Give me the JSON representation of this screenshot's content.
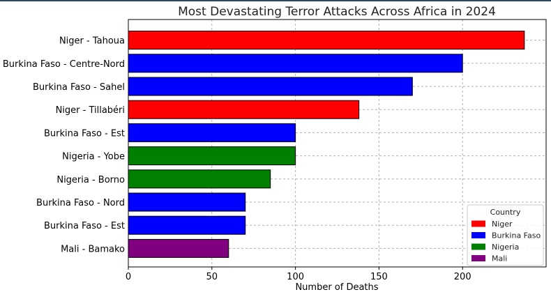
{
  "chart_data": {
    "type": "bar",
    "orientation": "horizontal",
    "title": "Most Devastating Terror Attacks Across Africa in 2024",
    "xlabel": "Number of Deaths",
    "ylabel": "",
    "xlim": [
      0,
      250
    ],
    "xticks": [
      0,
      50,
      100,
      150,
      200
    ],
    "grid": true,
    "legend_position": "bottom-right",
    "legend_title": "Country",
    "countries": [
      {
        "name": "Niger",
        "color": "#ff0000"
      },
      {
        "name": "Burkina Faso",
        "color": "#0000ff"
      },
      {
        "name": "Nigeria",
        "color": "#008000"
      },
      {
        "name": "Mali",
        "color": "#800080"
      }
    ],
    "bars": [
      {
        "label": "Niger - Tahoua",
        "country": "Niger",
        "value": 237
      },
      {
        "label": "Burkina Faso - Centre-Nord",
        "country": "Burkina Faso",
        "value": 200
      },
      {
        "label": "Burkina Faso - Sahel",
        "country": "Burkina Faso",
        "value": 170
      },
      {
        "label": "Niger - Tillabéri",
        "country": "Niger",
        "value": 138
      },
      {
        "label": "Burkina Faso - Est",
        "country": "Burkina Faso",
        "value": 100
      },
      {
        "label": "Nigeria - Yobe",
        "country": "Nigeria",
        "value": 100
      },
      {
        "label": "Nigeria - Borno",
        "country": "Nigeria",
        "value": 85
      },
      {
        "label": "Burkina Faso - Nord",
        "country": "Burkina Faso",
        "value": 70
      },
      {
        "label": "Burkina Faso - Est",
        "country": "Burkina Faso",
        "value": 70
      },
      {
        "label": "Mali - Bamako",
        "country": "Mali",
        "value": 60
      }
    ]
  }
}
